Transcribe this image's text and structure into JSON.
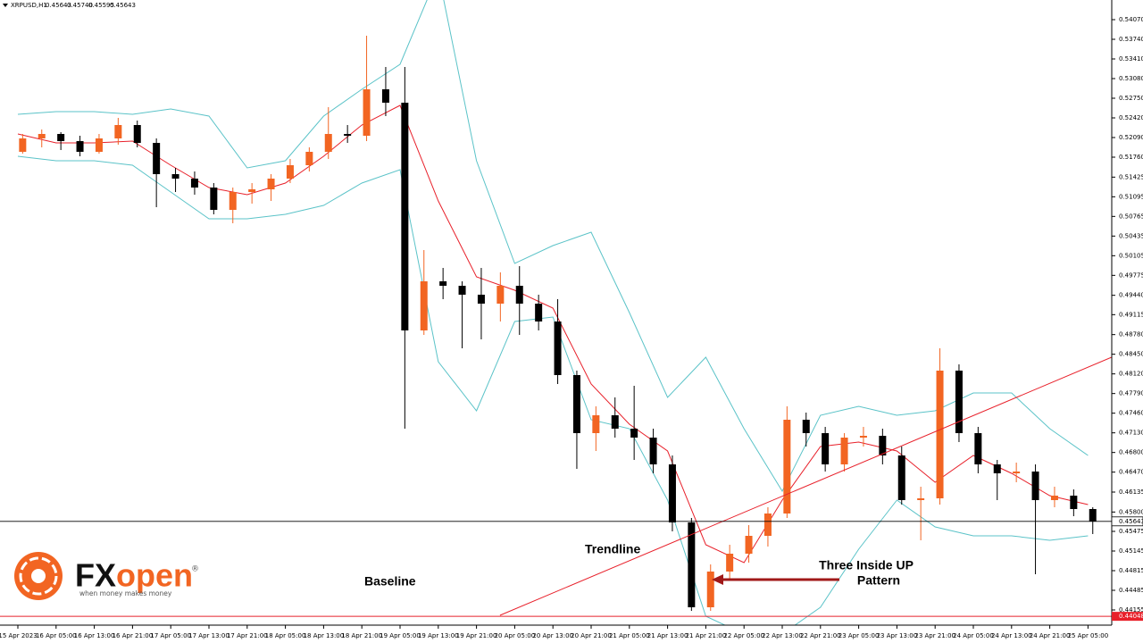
{
  "header": {
    "symbol": "XRPUSD,H1",
    "quote": [
      "0.45643",
      "0.45740",
      "0.45595",
      "0.45643"
    ]
  },
  "logo": {
    "brand_a": "FX",
    "brand_b": "open",
    "mark": "®",
    "tagline": "when money makes money"
  },
  "annotations": {
    "trendline": "Trendline",
    "baseline": "Baseline",
    "pattern": [
      "Three Inside UP",
      "Pattern"
    ]
  },
  "chart_data": {
    "type": "candlestick",
    "up_color": "#f26522",
    "down_color": "#000000",
    "open": [
      0.5185,
      0.52075,
      0.5215,
      0.5203,
      0.5185,
      0.52075,
      0.523,
      0.52,
      0.51475,
      0.514,
      0.5125,
      0.50875,
      0.51175,
      0.5122,
      0.514,
      0.51625,
      0.5185,
      0.5215,
      0.5212,
      0.529,
      0.52675,
      0.4885,
      0.49675,
      0.496,
      0.4945,
      0.493,
      0.496,
      0.493,
      0.49,
      0.481,
      0.47125,
      0.47425,
      0.472,
      0.4705,
      0.466,
      0.45625,
      0.442,
      0.448,
      0.451,
      0.454,
      0.45775,
      0.4735,
      0.47125,
      0.466,
      0.4705,
      0.4708,
      0.4675,
      0.46,
      0.4603,
      0.48175,
      0.47125,
      0.466,
      0.4645,
      0.4648,
      0.46,
      0.46075,
      0.4585
    ],
    "high": [
      0.5215,
      0.52225,
      0.5218,
      0.5212,
      0.5215,
      0.5242,
      0.52375,
      0.52075,
      0.5158,
      0.5152,
      0.51325,
      0.5125,
      0.51325,
      0.51475,
      0.5173,
      0.51925,
      0.526,
      0.523,
      0.538,
      0.53275,
      0.53275,
      0.502,
      0.499,
      0.49675,
      0.499,
      0.49825,
      0.4993,
      0.4945,
      0.49375,
      0.48175,
      0.47575,
      0.47725,
      0.4792,
      0.472,
      0.4675,
      0.457,
      0.4492,
      0.4525,
      0.4558,
      0.4588,
      0.47575,
      0.4747,
      0.4723,
      0.47125,
      0.4723,
      0.472,
      0.469,
      0.46225,
      0.4855,
      0.4828,
      0.4723,
      0.46675,
      0.4663,
      0.466,
      0.46225,
      0.4618,
      0.4588
    ],
    "low": [
      0.5182,
      0.51925,
      0.5188,
      0.51775,
      0.5182,
      0.5197,
      0.51925,
      0.5092,
      0.51175,
      0.5113,
      0.508,
      0.5065,
      0.5098,
      0.51025,
      0.51325,
      0.5152,
      0.5173,
      0.52,
      0.5203,
      0.5245,
      0.472,
      0.48775,
      0.49375,
      0.4855,
      0.487,
      0.49,
      0.48775,
      0.4885,
      0.4795,
      0.46525,
      0.46825,
      0.4705,
      0.46675,
      0.4645,
      0.45475,
      0.4414,
      0.4414,
      0.4465,
      0.4495,
      0.4522,
      0.457,
      0.469,
      0.4648,
      0.4648,
      0.469,
      0.466,
      0.45925,
      0.45325,
      0.45925,
      0.46975,
      0.4645,
      0.46,
      0.463,
      0.44755,
      0.4588,
      0.4573,
      0.4543
    ],
    "close": [
      0.52075,
      0.5215,
      0.5203,
      0.5185,
      0.52075,
      0.523,
      0.52,
      0.51475,
      0.514,
      0.5125,
      0.50875,
      0.51175,
      0.5122,
      0.514,
      0.51625,
      0.5185,
      0.5215,
      0.5212,
      0.529,
      0.52675,
      0.4885,
      0.49675,
      0.496,
      0.4945,
      0.493,
      0.496,
      0.493,
      0.49,
      0.481,
      0.47125,
      0.47425,
      0.472,
      0.4705,
      0.466,
      0.45625,
      0.442,
      0.448,
      0.451,
      0.454,
      0.45775,
      0.4735,
      0.47125,
      0.466,
      0.4705,
      0.4708,
      0.4675,
      0.46,
      0.4603,
      0.48175,
      0.47125,
      0.466,
      0.4645,
      0.4648,
      0.46,
      0.46075,
      0.4585,
      0.45643
    ],
    "lines": [
      {
        "color": "#e8202a",
        "x": [
          0,
          2,
          4,
          6,
          8,
          10,
          12,
          14,
          16,
          18,
          20,
          22,
          24,
          26,
          28,
          30,
          32,
          34,
          36,
          38,
          40,
          42,
          44,
          46,
          48,
          50,
          52,
          54,
          56
        ],
        "values": [
          0.5215,
          0.52,
          0.52,
          0.5203,
          0.51625,
          0.5125,
          0.5113,
          0.51325,
          0.51775,
          0.523,
          0.5263,
          0.51025,
          0.4975,
          0.49525,
          0.49225,
          0.4795,
          0.47275,
          0.46825,
          0.4525,
          0.4495,
          0.46,
          0.469,
          0.46975,
          0.46825,
          0.463,
          0.4675,
          0.4645,
          0.46075,
          0.45925
        ]
      },
      {
        "color": "#5bc3c8",
        "x": [
          0,
          2,
          4,
          6,
          8,
          10,
          12,
          14,
          16,
          18,
          20,
          22,
          24,
          26,
          28,
          30,
          32,
          34,
          36,
          38,
          40,
          42,
          44,
          46,
          48,
          50,
          52,
          54,
          56
        ],
        "values": [
          0.5248,
          0.52525,
          0.52525,
          0.5248,
          0.5257,
          0.5245,
          0.5158,
          0.517,
          0.5245,
          0.529,
          0.5332,
          0.5485,
          0.517,
          0.49975,
          0.50275,
          0.505,
          0.4915,
          0.47725,
          0.484,
          0.472,
          0.4615,
          0.47425,
          0.47575,
          0.47425,
          0.475,
          0.478,
          0.478,
          0.472,
          0.4675
        ]
      },
      {
        "color": "#5bc3c8",
        "x": [
          0,
          2,
          4,
          6,
          8,
          10,
          12,
          14,
          16,
          18,
          20,
          22,
          24,
          26,
          28,
          30,
          32,
          34,
          36,
          38,
          40,
          42,
          44,
          46,
          48,
          50,
          52,
          54,
          56
        ],
        "values": [
          0.51775,
          0.517,
          0.517,
          0.51625,
          0.51175,
          0.50725,
          0.50725,
          0.508,
          0.5095,
          0.51325,
          0.5155,
          0.48325,
          0.475,
          0.49,
          0.49075,
          0.4735,
          0.472,
          0.46,
          0.4405,
          0.4375,
          0.4375,
          0.442,
          0.45175,
          0.46,
          0.4555,
          0.454,
          0.454,
          0.45325,
          0.454
        ]
      }
    ],
    "trendline": {
      "color": "#e8202a",
      "x": [
        25.23,
        57.24
      ],
      "values": [
        0.44065,
        0.484
      ]
    },
    "last_price": {
      "value": 0.45643,
      "label": "0.45643"
    },
    "baseline": {
      "value": 0.44048,
      "label": "0.44048",
      "color": "#e8202a"
    },
    "xlim": [
      -0.9346,
      57.243
    ],
    "ylim": [
      0.439,
      0.544
    ],
    "xticks": [
      {
        "value": 0,
        "label": "15 Apr 2023"
      },
      {
        "value": 2,
        "label": "16 Apr 05:00"
      },
      {
        "value": 4,
        "label": "16 Apr 13:00"
      },
      {
        "value": 6,
        "label": "16 Apr 21:00"
      },
      {
        "value": 8,
        "label": "17 Apr 05:00"
      },
      {
        "value": 10,
        "label": "17 Apr 13:00"
      },
      {
        "value": 12,
        "label": "17 Apr 21:00"
      },
      {
        "value": 14,
        "label": "18 Apr 05:00"
      },
      {
        "value": 16,
        "label": "18 Apr 13:00"
      },
      {
        "value": 18,
        "label": "18 Apr 21:00"
      },
      {
        "value": 20,
        "label": "19 Apr 05:00"
      },
      {
        "value": 22,
        "label": "19 Apr 13:00"
      },
      {
        "value": 24,
        "label": "19 Apr 21:00"
      },
      {
        "value": 26,
        "label": "20 Apr 05:00"
      },
      {
        "value": 28,
        "label": "20 Apr 13:00"
      },
      {
        "value": 30,
        "label": "20 Apr 21:00"
      },
      {
        "value": 32,
        "label": "21 Apr 05:00"
      },
      {
        "value": 34,
        "label": "21 Apr 13:00"
      },
      {
        "value": 36,
        "label": "21 Apr 21:00"
      },
      {
        "value": 38,
        "label": "22 Apr 05:00"
      },
      {
        "value": 40,
        "label": "22 Apr 13:00"
      },
      {
        "value": 42,
        "label": "22 Apr 21:00"
      },
      {
        "value": 44,
        "label": "23 Apr 05:00"
      },
      {
        "value": 46,
        "label": "23 Apr 13:00"
      },
      {
        "value": 48,
        "label": "23 Apr 21:00"
      },
      {
        "value": 50,
        "label": "24 Apr 05:00"
      },
      {
        "value": 52,
        "label": "24 Apr 13:00"
      },
      {
        "value": 54,
        "label": "24 Apr 21:00"
      },
      {
        "value": 56,
        "label": "25 Apr 05:00"
      }
    ],
    "yticks": [
      {
        "value": 0.5407,
        "label": "0.54070"
      },
      {
        "value": 0.5374,
        "label": "0.53740"
      },
      {
        "value": 0.5341,
        "label": "0.53410"
      },
      {
        "value": 0.5308,
        "label": "0.53080"
      },
      {
        "value": 0.5275,
        "label": "0.52750"
      },
      {
        "value": 0.5242,
        "label": "0.52420"
      },
      {
        "value": 0.5209,
        "label": "0.52090"
      },
      {
        "value": 0.5176,
        "label": "0.51760"
      },
      {
        "value": 0.51425,
        "label": "0.51425"
      },
      {
        "value": 0.51095,
        "label": "0.51095"
      },
      {
        "value": 0.50765,
        "label": "0.50765"
      },
      {
        "value": 0.50435,
        "label": "0.50435"
      },
      {
        "value": 0.50105,
        "label": "0.50105"
      },
      {
        "value": 0.49775,
        "label": "0.49775"
      },
      {
        "value": 0.4944,
        "label": "0.49440"
      },
      {
        "value": 0.49115,
        "label": "0.49115"
      },
      {
        "value": 0.4878,
        "label": "0.48780"
      },
      {
        "value": 0.4845,
        "label": "0.48450"
      },
      {
        "value": 0.4812,
        "label": "0.48120"
      },
      {
        "value": 0.4779,
        "label": "0.47790"
      },
      {
        "value": 0.4746,
        "label": "0.47460"
      },
      {
        "value": 0.4713,
        "label": "0.47130"
      },
      {
        "value": 0.468,
        "label": "0.46800"
      },
      {
        "value": 0.4647,
        "label": "0.46470"
      },
      {
        "value": 0.46135,
        "label": "0.46135"
      },
      {
        "value": 0.458,
        "label": "0.45800"
      },
      {
        "value": 0.45475,
        "label": "0.45475"
      },
      {
        "value": 0.45145,
        "label": "0.45145"
      },
      {
        "value": 0.44815,
        "label": "0.44815"
      },
      {
        "value": 0.44485,
        "label": "0.44485"
      },
      {
        "value": 0.44155,
        "label": "0.44155"
      }
    ]
  }
}
